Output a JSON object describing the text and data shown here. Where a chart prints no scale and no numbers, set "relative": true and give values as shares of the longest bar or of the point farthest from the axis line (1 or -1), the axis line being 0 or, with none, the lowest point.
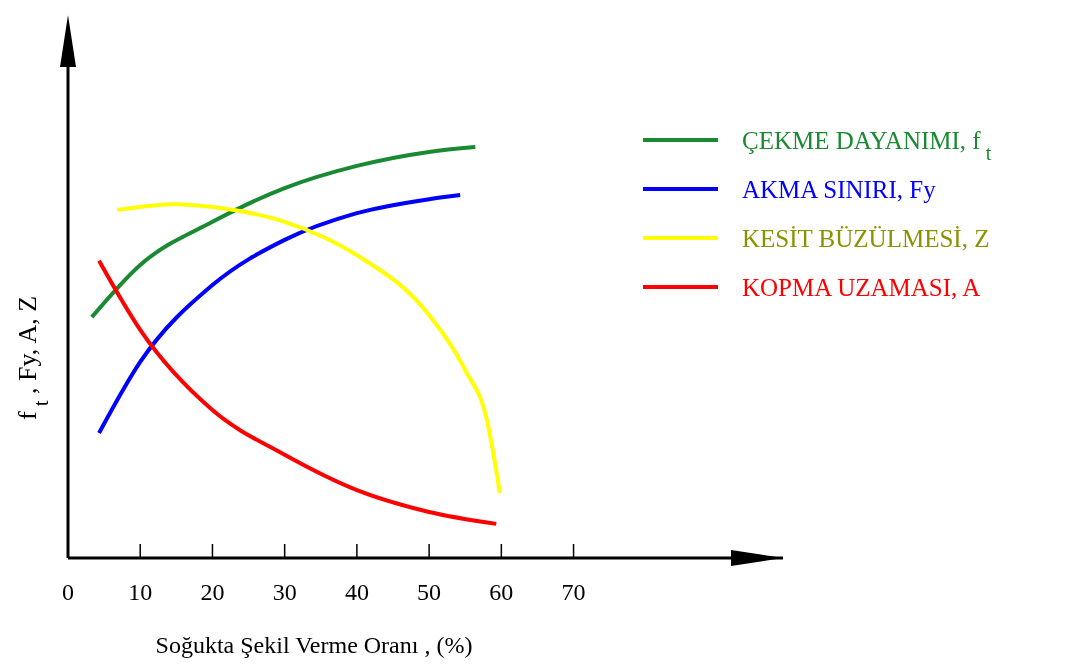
{
  "chart_data": {
    "type": "line",
    "relative": true,
    "xlabel": "Soğukta Şekil Verme Oranı , (%)",
    "ylabel": "f$_{t}$ , Fy, A, Z",
    "xlim": [
      0,
      99
    ],
    "xticks": [
      0,
      10,
      20,
      30,
      40,
      50,
      60,
      70
    ],
    "grid": false,
    "legend": "top right",
    "marker": "none",
    "line_style": "solid",
    "series": [
      {
        "name": "ÇEKME DAYANIMI, f$_{t}$",
        "color": "#1a8a32",
        "x": [
          3.3,
          10,
          20,
          30,
          40,
          50,
          56.4
        ],
        "values": [
          0.586,
          0.713,
          0.818,
          0.9,
          0.954,
          0.988,
          1.0
        ]
      },
      {
        "name": "AKMA SINIRI, Fy",
        "color": "#0000ff",
        "x": [
          4.3,
          10,
          20,
          30,
          40,
          50,
          54.3
        ],
        "values": [
          0.304,
          0.477,
          0.664,
          0.774,
          0.839,
          0.873,
          0.883
        ]
      },
      {
        "name": "KESİT BÜZÜLMESİ, Z",
        "color": "#ffff00",
        "x": [
          6.8,
          15,
          20,
          30,
          40,
          50,
          55,
          58,
          59.8
        ],
        "values": [
          0.847,
          0.861,
          0.854,
          0.818,
          0.737,
          0.591,
          0.457,
          0.336,
          0.158
        ]
      },
      {
        "name": "KOPMA UZAMASI, A",
        "color": "#ff0000",
        "x": [
          4.3,
          10,
          20,
          30,
          40,
          50,
          59.3
        ],
        "values": [
          0.723,
          0.555,
          0.36,
          0.251,
          0.165,
          0.112,
          0.083
        ]
      }
    ]
  }
}
